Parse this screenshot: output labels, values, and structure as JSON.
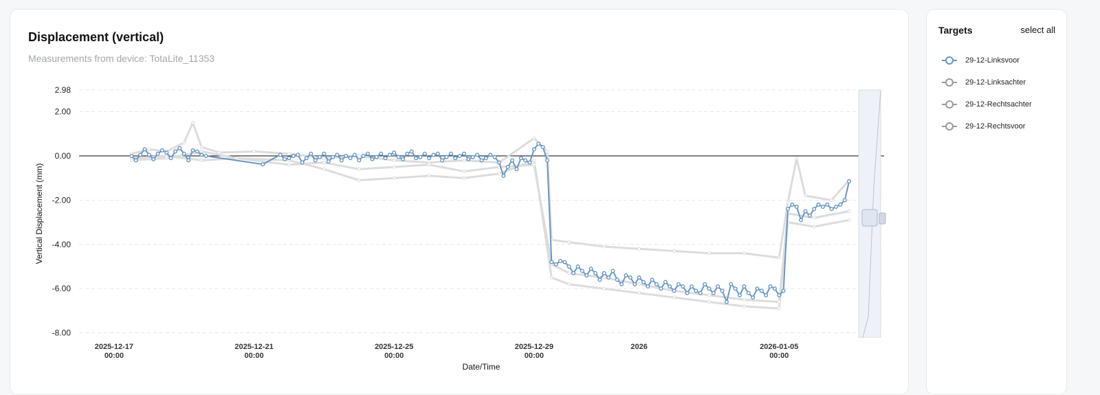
{
  "header": {
    "title": "Displacement (vertical)",
    "subtitle": "Measurements from device: TotaLite_11353"
  },
  "targets_panel": {
    "title": "Targets",
    "select_all": "select all",
    "items": [
      {
        "label": "29-12-Linksvoor",
        "active": true
      },
      {
        "label": "29-12-Linksachter",
        "active": false
      },
      {
        "label": "29-12-Rechtsachter",
        "active": false
      },
      {
        "label": "29-12-Rechtsvoor",
        "active": false
      }
    ]
  },
  "colors": {
    "active": "#6596c6",
    "inactive": "#9a9a9a",
    "ghost": "#dcdcdc",
    "zero_line": "#222222",
    "grid": "#e4e6ea"
  },
  "chart_data": {
    "type": "line",
    "xlabel": "Date/Time",
    "ylabel": "Vertical Displacement (mm)",
    "ylim": [
      -8.2,
      2.98
    ],
    "y_ticks": [
      {
        "value": 2.98,
        "label": "2.98"
      },
      {
        "value": 2.0,
        "label": "2.00"
      },
      {
        "value": 0.0,
        "label": "0.00"
      },
      {
        "value": -2.0,
        "label": "-2.00"
      },
      {
        "value": -4.0,
        "label": "-4.00"
      },
      {
        "value": -6.0,
        "label": "-6.00"
      },
      {
        "value": -8.0,
        "label": "-8.00"
      }
    ],
    "x_range": [
      "2025-12-16T00:00",
      "2026-01-08T00:00"
    ],
    "x_ticks": [
      {
        "date": "2025-12-17T00:00",
        "line1": "2025-12-17",
        "line2": "00:00"
      },
      {
        "date": "2025-12-21T00:00",
        "line1": "2025-12-21",
        "line2": "00:00"
      },
      {
        "date": "2025-12-25T00:00",
        "line1": "2025-12-25",
        "line2": "00:00"
      },
      {
        "date": "2025-12-29T00:00",
        "line1": "2025-12-29",
        "line2": "00:00"
      },
      {
        "date": "2026-01-01T00:00",
        "line1": "2026",
        "line2": ""
      },
      {
        "date": "2026-01-05T00:00",
        "line1": "2026-01-05",
        "line2": "00:00"
      }
    ],
    "grid": "horizontal-dashed",
    "series": [
      {
        "name": "29-12-Linksvoor",
        "active": true,
        "points": [
          [
            "2025-12-17T12:00",
            0.0
          ],
          [
            "2025-12-17T15:00",
            -0.2
          ],
          [
            "2025-12-17T18:00",
            0.05
          ],
          [
            "2025-12-17T21:00",
            0.3
          ],
          [
            "2025-12-18T00:00",
            0.05
          ],
          [
            "2025-12-18T03:00",
            -0.15
          ],
          [
            "2025-12-18T06:00",
            0.1
          ],
          [
            "2025-12-18T09:00",
            0.25
          ],
          [
            "2025-12-18T12:00",
            0.15
          ],
          [
            "2025-12-18T15:00",
            -0.1
          ],
          [
            "2025-12-18T18:00",
            0.2
          ],
          [
            "2025-12-18T21:00",
            0.35
          ],
          [
            "2025-12-19T00:00",
            0.1
          ],
          [
            "2025-12-19T03:00",
            -0.2
          ],
          [
            "2025-12-19T06:00",
            0.25
          ],
          [
            "2025-12-19T09:00",
            0.2
          ],
          [
            "2025-12-19T12:00",
            0.05
          ],
          [
            "2025-12-19T15:00",
            0.0
          ],
          [
            "2025-12-21T06:00",
            -0.38
          ],
          [
            "2025-12-21T18:00",
            0.05
          ],
          [
            "2025-12-21T21:00",
            -0.15
          ],
          [
            "2025-12-22T00:00",
            -0.1
          ],
          [
            "2025-12-22T03:00",
            0.0
          ],
          [
            "2025-12-22T06:00",
            0.05
          ],
          [
            "2025-12-22T09:00",
            -0.3
          ],
          [
            "2025-12-22T12:00",
            -0.1
          ],
          [
            "2025-12-22T15:00",
            0.1
          ],
          [
            "2025-12-22T18:00",
            -0.2
          ],
          [
            "2025-12-22T21:00",
            -0.05
          ],
          [
            "2025-12-23T00:00",
            0.1
          ],
          [
            "2025-12-23T03:00",
            -0.25
          ],
          [
            "2025-12-23T06:00",
            -0.05
          ],
          [
            "2025-12-23T09:00",
            0.05
          ],
          [
            "2025-12-23T12:00",
            -0.2
          ],
          [
            "2025-12-23T15:00",
            0.0
          ],
          [
            "2025-12-23T18:00",
            -0.1
          ],
          [
            "2025-12-23T21:00",
            0.05
          ],
          [
            "2025-12-24T00:00",
            -0.2
          ],
          [
            "2025-12-24T03:00",
            0.0
          ],
          [
            "2025-12-24T06:00",
            0.1
          ],
          [
            "2025-12-24T09:00",
            -0.15
          ],
          [
            "2025-12-24T12:00",
            -0.05
          ],
          [
            "2025-12-24T15:00",
            0.1
          ],
          [
            "2025-12-24T18:00",
            -0.1
          ],
          [
            "2025-12-24T21:00",
            0.05
          ],
          [
            "2025-12-25T00:00",
            0.15
          ],
          [
            "2025-12-25T03:00",
            -0.05
          ],
          [
            "2025-12-25T06:00",
            -0.15
          ],
          [
            "2025-12-25T09:00",
            0.1
          ],
          [
            "2025-12-25T12:00",
            0.2
          ],
          [
            "2025-12-25T15:00",
            -0.1
          ],
          [
            "2025-12-25T18:00",
            -0.05
          ],
          [
            "2025-12-25T21:00",
            0.1
          ],
          [
            "2025-12-26T00:00",
            -0.1
          ],
          [
            "2025-12-26T03:00",
            0.05
          ],
          [
            "2025-12-26T06:00",
            0.1
          ],
          [
            "2025-12-26T09:00",
            -0.2
          ],
          [
            "2025-12-26T12:00",
            -0.05
          ],
          [
            "2025-12-26T15:00",
            0.1
          ],
          [
            "2025-12-26T18:00",
            -0.1
          ],
          [
            "2025-12-26T21:00",
            0.0
          ],
          [
            "2025-12-27T00:00",
            0.1
          ],
          [
            "2025-12-27T03:00",
            -0.15
          ],
          [
            "2025-12-27T06:00",
            -0.05
          ],
          [
            "2025-12-27T09:00",
            0.05
          ],
          [
            "2025-12-27T12:00",
            -0.2
          ],
          [
            "2025-12-27T15:00",
            -0.1
          ],
          [
            "2025-12-27T18:00",
            0.05
          ],
          [
            "2025-12-27T21:00",
            -0.05
          ],
          [
            "2025-12-28T00:00",
            -0.3
          ],
          [
            "2025-12-28T03:00",
            -0.9
          ],
          [
            "2025-12-28T06:00",
            -0.5
          ],
          [
            "2025-12-28T09:00",
            -0.2
          ],
          [
            "2025-12-28T12:00",
            -0.6
          ],
          [
            "2025-12-28T15:00",
            -0.1
          ],
          [
            "2025-12-28T18:00",
            -0.2
          ],
          [
            "2025-12-28T21:00",
            -0.3
          ],
          [
            "2025-12-29T00:00",
            0.3
          ],
          [
            "2025-12-29T03:00",
            0.55
          ],
          [
            "2025-12-29T06:00",
            0.4
          ],
          [
            "2025-12-29T09:00",
            -0.2
          ],
          [
            "2025-12-29T12:00",
            -4.8
          ],
          [
            "2025-12-29T15:00",
            -4.9
          ],
          [
            "2025-12-29T18:00",
            -4.75
          ],
          [
            "2025-12-29T21:00",
            -4.8
          ],
          [
            "2025-12-30T00:00",
            -5.0
          ],
          [
            "2025-12-30T03:00",
            -5.3
          ],
          [
            "2025-12-30T06:00",
            -5.0
          ],
          [
            "2025-12-30T09:00",
            -5.2
          ],
          [
            "2025-12-30T12:00",
            -5.4
          ],
          [
            "2025-12-30T15:00",
            -5.1
          ],
          [
            "2025-12-30T18:00",
            -5.3
          ],
          [
            "2025-12-30T21:00",
            -5.6
          ],
          [
            "2025-12-31T00:00",
            -5.3
          ],
          [
            "2025-12-31T03:00",
            -5.5
          ],
          [
            "2025-12-31T06:00",
            -5.2
          ],
          [
            "2025-12-31T09:00",
            -5.6
          ],
          [
            "2025-12-31T12:00",
            -5.8
          ],
          [
            "2025-12-31T15:00",
            -5.4
          ],
          [
            "2025-12-31T18:00",
            -5.5
          ],
          [
            "2025-12-31T21:00",
            -5.8
          ],
          [
            "2026-01-01T00:00",
            -5.5
          ],
          [
            "2026-01-01T03:00",
            -5.7
          ],
          [
            "2026-01-01T06:00",
            -5.9
          ],
          [
            "2026-01-01T09:00",
            -5.6
          ],
          [
            "2026-01-01T12:00",
            -5.8
          ],
          [
            "2026-01-01T15:00",
            -6.0
          ],
          [
            "2026-01-01T18:00",
            -5.7
          ],
          [
            "2026-01-01T21:00",
            -5.9
          ],
          [
            "2026-01-02T00:00",
            -6.1
          ],
          [
            "2026-01-02T03:00",
            -5.8
          ],
          [
            "2026-01-02T06:00",
            -5.9
          ],
          [
            "2026-01-02T09:00",
            -6.2
          ],
          [
            "2026-01-02T12:00",
            -5.9
          ],
          [
            "2026-01-02T15:00",
            -6.1
          ],
          [
            "2026-01-02T18:00",
            -6.2
          ],
          [
            "2026-01-02T21:00",
            -5.8
          ],
          [
            "2026-01-03T00:00",
            -6.0
          ],
          [
            "2026-01-03T03:00",
            -6.2
          ],
          [
            "2026-01-03T06:00",
            -5.9
          ],
          [
            "2026-01-03T09:00",
            -6.1
          ],
          [
            "2026-01-03T12:00",
            -6.6
          ],
          [
            "2026-01-03T15:00",
            -5.8
          ],
          [
            "2026-01-03T18:00",
            -6.0
          ],
          [
            "2026-01-03T21:00",
            -6.3
          ],
          [
            "2026-01-04T00:00",
            -5.9
          ],
          [
            "2026-01-04T03:00",
            -6.2
          ],
          [
            "2026-01-04T06:00",
            -6.4
          ],
          [
            "2026-01-04T09:00",
            -6.0
          ],
          [
            "2026-01-04T12:00",
            -6.1
          ],
          [
            "2026-01-04T15:00",
            -6.3
          ],
          [
            "2026-01-04T18:00",
            -5.9
          ],
          [
            "2026-01-04T21:00",
            -6.0
          ],
          [
            "2026-01-05T00:00",
            -6.3
          ],
          [
            "2026-01-05T03:00",
            -6.1
          ],
          [
            "2026-01-05T06:00",
            -2.4
          ],
          [
            "2026-01-05T09:00",
            -2.2
          ],
          [
            "2026-01-05T12:00",
            -2.3
          ],
          [
            "2026-01-05T15:00",
            -2.9
          ],
          [
            "2026-01-05T18:00",
            -2.5
          ],
          [
            "2026-01-05T21:00",
            -2.7
          ],
          [
            "2026-01-06T00:00",
            -2.4
          ],
          [
            "2026-01-06T03:00",
            -2.2
          ],
          [
            "2026-01-06T06:00",
            -2.3
          ],
          [
            "2026-01-06T09:00",
            -2.2
          ],
          [
            "2026-01-06T12:00",
            -2.4
          ],
          [
            "2026-01-06T15:00",
            -2.3
          ],
          [
            "2026-01-06T18:00",
            -2.2
          ],
          [
            "2026-01-06T21:00",
            -2.0
          ],
          [
            "2026-01-07T00:00",
            -1.15
          ]
        ]
      },
      {
        "name": "29-12-Linksachter",
        "active": false,
        "points": [
          [
            "2025-12-17T12:00",
            0.1
          ],
          [
            "2025-12-18T00:00",
            0.3
          ],
          [
            "2025-12-18T12:00",
            0.2
          ],
          [
            "2025-12-19T00:00",
            0.6
          ],
          [
            "2025-12-19T06:00",
            1.5
          ],
          [
            "2025-12-19T12:00",
            0.4
          ],
          [
            "2025-12-20T00:00",
            0.15
          ],
          [
            "2025-12-21T00:00",
            0.2
          ],
          [
            "2025-12-22T00:00",
            0.1
          ],
          [
            "2025-12-23T00:00",
            -0.1
          ],
          [
            "2025-12-24T00:00",
            0.0
          ],
          [
            "2025-12-25T00:00",
            -0.2
          ],
          [
            "2025-12-26T00:00",
            -0.3
          ],
          [
            "2025-12-27T00:00",
            -0.2
          ],
          [
            "2025-12-28T00:00",
            -0.3
          ],
          [
            "2025-12-29T00:00",
            0.8
          ],
          [
            "2025-12-29T09:00",
            0.2
          ],
          [
            "2025-12-29T12:00",
            -3.8
          ],
          [
            "2025-12-30T00:00",
            -3.9
          ],
          [
            "2025-12-31T00:00",
            -4.1
          ],
          [
            "2026-01-01T00:00",
            -4.2
          ],
          [
            "2026-01-02T00:00",
            -4.3
          ],
          [
            "2026-01-03T00:00",
            -4.4
          ],
          [
            "2026-01-04T00:00",
            -4.4
          ],
          [
            "2026-01-05T00:00",
            -4.6
          ],
          [
            "2026-01-05T06:00",
            -2.1
          ],
          [
            "2026-01-05T12:00",
            -0.1
          ],
          [
            "2026-01-05T18:00",
            -1.8
          ],
          [
            "2026-01-06T12:00",
            -2.0
          ],
          [
            "2026-01-07T00:00",
            -1.1
          ]
        ]
      },
      {
        "name": "29-12-Rechtsachter",
        "active": false,
        "points": [
          [
            "2025-12-17T12:00",
            -0.1
          ],
          [
            "2025-12-18T12:00",
            0.0
          ],
          [
            "2025-12-19T12:00",
            -0.2
          ],
          [
            "2025-12-20T12:00",
            -0.1
          ],
          [
            "2025-12-22T00:00",
            -0.2
          ],
          [
            "2025-12-23T00:00",
            -0.6
          ],
          [
            "2025-12-24T00:00",
            -1.1
          ],
          [
            "2025-12-25T00:00",
            -1.0
          ],
          [
            "2025-12-26T00:00",
            -0.9
          ],
          [
            "2025-12-27T00:00",
            -1.0
          ],
          [
            "2025-12-28T00:00",
            -0.8
          ],
          [
            "2025-12-29T00:00",
            -0.2
          ],
          [
            "2025-12-29T12:00",
            -5.5
          ],
          [
            "2025-12-30T00:00",
            -5.8
          ],
          [
            "2025-12-31T00:00",
            -6.0
          ],
          [
            "2026-01-01T00:00",
            -6.2
          ],
          [
            "2026-01-02T00:00",
            -6.4
          ],
          [
            "2026-01-03T00:00",
            -6.6
          ],
          [
            "2026-01-04T00:00",
            -6.8
          ],
          [
            "2026-01-05T00:00",
            -6.9
          ],
          [
            "2026-01-05T06:00",
            -3.0
          ],
          [
            "2026-01-06T00:00",
            -3.2
          ],
          [
            "2026-01-07T00:00",
            -2.9
          ]
        ]
      },
      {
        "name": "29-12-Rechtsvoor",
        "active": false,
        "points": [
          [
            "2025-12-17T12:00",
            -0.2
          ],
          [
            "2025-12-18T12:00",
            -0.1
          ],
          [
            "2025-12-19T12:00",
            0.2
          ],
          [
            "2025-12-20T12:00",
            -0.1
          ],
          [
            "2025-12-22T00:00",
            -0.4
          ],
          [
            "2025-12-23T00:00",
            -0.3
          ],
          [
            "2025-12-24T00:00",
            -0.6
          ],
          [
            "2025-12-25T00:00",
            -0.5
          ],
          [
            "2025-12-26T00:00",
            -0.4
          ],
          [
            "2025-12-27T00:00",
            -0.7
          ],
          [
            "2025-12-28T00:00",
            -0.5
          ],
          [
            "2025-12-29T00:00",
            -0.4
          ],
          [
            "2025-12-29T12:00",
            -4.9
          ],
          [
            "2025-12-30T00:00",
            -5.3
          ],
          [
            "2025-12-31T00:00",
            -5.5
          ],
          [
            "2026-01-01T00:00",
            -5.8
          ],
          [
            "2026-01-02T00:00",
            -6.1
          ],
          [
            "2026-01-03T00:00",
            -6.3
          ],
          [
            "2026-01-04T00:00",
            -6.5
          ],
          [
            "2026-01-05T00:00",
            -6.6
          ],
          [
            "2026-01-05T06:00",
            -2.6
          ],
          [
            "2026-01-06T00:00",
            -2.8
          ],
          [
            "2026-01-07T00:00",
            -2.5
          ]
        ]
      }
    ]
  }
}
